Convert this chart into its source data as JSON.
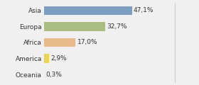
{
  "categories": [
    "Asia",
    "Europa",
    "Africa",
    "America",
    "Oceania"
  ],
  "values": [
    47.1,
    32.7,
    17.0,
    2.9,
    0.3
  ],
  "labels": [
    "47,1%",
    "32,7%",
    "17,0%",
    "2,9%",
    "0,3%"
  ],
  "bar_colors": [
    "#7b9dc0",
    "#abbe82",
    "#e8b98a",
    "#e8d45a",
    "#e8a090"
  ],
  "background_color": "#f0f0f0",
  "xlim": [
    0,
    70
  ],
  "label_fontsize": 6.5,
  "tick_fontsize": 6.5,
  "bar_height": 0.55
}
